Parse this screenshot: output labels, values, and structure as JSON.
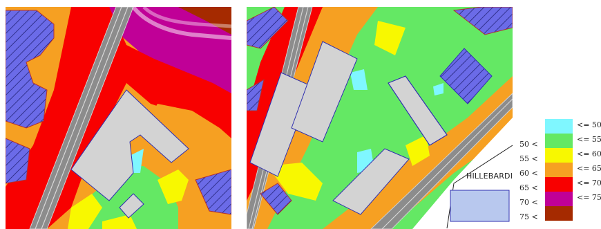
{
  "map_left": {
    "zone_colors": {
      "le50": "#7ff7ff",
      "b50_55": "#64e864",
      "b55_60": "#f8f800",
      "b60_65": "#f6a022",
      "b65_70": "#f80000",
      "b70_75": "#c00097",
      "b75": "#a52a00"
    },
    "building_color": "#d3d3d3",
    "hatched_color": "#6b6be8"
  },
  "map_right": {
    "street_label": "HILLEBARDI"
  },
  "legend": {
    "rows": [
      {
        "lower": "",
        "upper": "<= 50",
        "color": "#7ff7ff"
      },
      {
        "lower": "50 <",
        "upper": "<= 55",
        "color": "#64e864"
      },
      {
        "lower": "55 <",
        "upper": "<= 60",
        "color": "#f8f800"
      },
      {
        "lower": "60 <",
        "upper": "<= 65",
        "color": "#f6a022"
      },
      {
        "lower": "65 <",
        "upper": "<= 70",
        "color": "#f80000"
      },
      {
        "lower": "70 <",
        "upper": "<= 75",
        "color": "#c00097"
      },
      {
        "lower": "75 <",
        "upper": "",
        "color": "#a52a00"
      }
    ]
  }
}
